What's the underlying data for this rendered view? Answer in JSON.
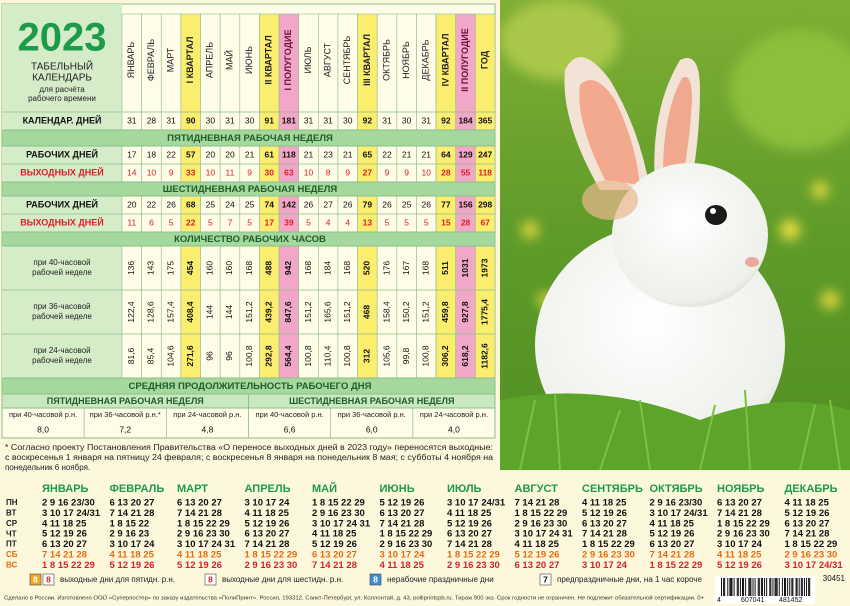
{
  "header": {
    "year": "2023",
    "title_lines": [
      "ТАБЕЛЬНЫЙ",
      "КАЛЕНДАРЬ"
    ],
    "subtitle_lines": [
      "для расчёта",
      "рабочего времени"
    ]
  },
  "table": {
    "columns": [
      "ЯНВАРЬ",
      "ФЕВРАЛЬ",
      "МАРТ",
      "I КВАРТАЛ",
      "АПРЕЛЬ",
      "МАЙ",
      "ИЮНЬ",
      "II КВАРТАЛ",
      "I ПОЛУГОДИЕ",
      "ИЮЛЬ",
      "АВГУСТ",
      "СЕНТЯБРЬ",
      "III КВАРТАЛ",
      "ОКТЯБРЬ",
      "НОЯБРЬ",
      "ДЕКАБРЬ",
      "IV КВАРТАЛ",
      "II ПОЛУГОДИЕ",
      "ГОД"
    ],
    "calendar_days": {
      "label": "КАЛЕНДАР. ДНЕЙ",
      "values": [
        31,
        28,
        31,
        90,
        30,
        31,
        30,
        91,
        181,
        31,
        31,
        30,
        92,
        31,
        30,
        31,
        92,
        184,
        365
      ]
    },
    "five_day": {
      "title": "ПЯТИДНЕВНАЯ РАБОЧАЯ НЕДЕЛЯ",
      "rows": [
        {
          "label": "РАБОЧИХ ДНЕЙ",
          "values": [
            17,
            18,
            22,
            57,
            20,
            20,
            21,
            61,
            118,
            21,
            23,
            21,
            65,
            22,
            21,
            21,
            64,
            129,
            247
          ]
        },
        {
          "label": "ВЫХОДНЫХ ДНЕЙ",
          "values": [
            14,
            10,
            9,
            33,
            10,
            11,
            9,
            30,
            63,
            10,
            8,
            9,
            27,
            9,
            9,
            10,
            28,
            55,
            118
          ]
        }
      ]
    },
    "six_day": {
      "title": "ШЕСТИДНЕВНАЯ РАБОЧАЯ НЕДЕЛЯ",
      "rows": [
        {
          "label": "РАБОЧИХ ДНЕЙ",
          "values": [
            20,
            22,
            26,
            68,
            25,
            24,
            25,
            74,
            142,
            26,
            27,
            26,
            79,
            26,
            25,
            26,
            77,
            156,
            298
          ]
        },
        {
          "label": "ВЫХОДНЫХ ДНЕЙ",
          "values": [
            11,
            6,
            5,
            22,
            5,
            7,
            5,
            17,
            39,
            5,
            4,
            4,
            13,
            5,
            5,
            5,
            15,
            28,
            67
          ]
        }
      ]
    },
    "hours": {
      "title": "КОЛИЧЕСТВО РАБОЧИХ ЧАСОВ",
      "rows": [
        {
          "label_lines": [
            "при 40-часовой",
            "рабочей неделе"
          ],
          "values": [
            "136",
            "143",
            "175",
            "454",
            "160",
            "160",
            "168",
            "488",
            "942",
            "168",
            "184",
            "168",
            "520",
            "176",
            "167",
            "168",
            "511",
            "1031",
            "1973"
          ]
        },
        {
          "label_lines": [
            "при 36-часовой",
            "рабочей неделе"
          ],
          "values": [
            "122,4",
            "128,6",
            "157,4",
            "408,4",
            "144",
            "144",
            "151,2",
            "439,2",
            "847,6",
            "151,2",
            "165,6",
            "151,2",
            "468",
            "158,4",
            "150,2",
            "151,2",
            "459,8",
            "927,8",
            "1775,4"
          ]
        },
        {
          "label_lines": [
            "при 24-часовой",
            "рабочей неделе"
          ],
          "values": [
            "81,6",
            "85,4",
            "104,6",
            "271,6",
            "96",
            "96",
            "100,8",
            "292,8",
            "564,4",
            "100,8",
            "110,4",
            "100,8",
            "312",
            "105,6",
            "99,8",
            "100,8",
            "306,2",
            "618,2",
            "1182,6"
          ]
        }
      ]
    },
    "average": {
      "title": "СРЕДНЯЯ ПРОДОЛЖИТЕЛЬНОСТЬ РАБОЧЕГО ДНЯ",
      "groups": [
        {
          "title": "ПЯТИДНЕВНАЯ РАБОЧАЯ НЕДЕЛЯ",
          "items": [
            {
              "label": "при 40-часовой р.н.",
              "value": "8,0"
            },
            {
              "label": "при 36-часовой р.н.*",
              "value": "7,2"
            },
            {
              "label": "при 24-часовой р.н.",
              "value": "4,8"
            }
          ]
        },
        {
          "title": "ШЕСТИДНЕВНАЯ РАБОЧАЯ НЕДЕЛЯ",
          "items": [
            {
              "label": "при 40-часовой р.н.",
              "value": "6,6"
            },
            {
              "label": "при 36-часовой р.н.",
              "value": "6,0"
            },
            {
              "label": "при 24-часовой р.н.",
              "value": "4,0"
            }
          ]
        }
      ]
    }
  },
  "footnote_lines": [
    "* Согласно проекту Постановления Правительства «О переносе выходных дней в 2023 году» переносятся выходные:",
    "с воскресенья 1 января на пятницу 24 февраля; с воскресенья 8 января на понедельник 8 мая; с субботы 4 ноября на",
    "понедельник 6 ноября."
  ],
  "calendar": {
    "weekdays": [
      "ПН",
      "ВТ",
      "СР",
      "ЧТ",
      "ПТ",
      "СБ",
      "ВС"
    ],
    "months": [
      {
        "name": "ЯНВАРЬ",
        "rows": [
          "2 9 16 23/30",
          "3 10 17 24/31",
          "4 11 18 25",
          "5 12 19 26",
          "6 13 20 27",
          "7 14 21 28",
          "1 8 15 22 29"
        ]
      },
      {
        "name": "ФЕВРАЛЬ",
        "rows": [
          "6 13 20 27",
          "7 14 21 28",
          "1 8 15 22",
          "2 9 16 23",
          "3 10 17 24",
          "4 11 18 25",
          "5 12 19 26"
        ]
      },
      {
        "name": "МАРТ",
        "rows": [
          "6 13 20 27",
          "7 14 21 28",
          "1 8 15 22 29",
          "2 9 16 23 30",
          "3 10 17 24 31",
          "4 11 18 25",
          "5 12 19 26"
        ]
      },
      {
        "name": "АПРЕЛЬ",
        "rows": [
          "3 10 17 24",
          "4 11 18 25",
          "5 12 19 26",
          "6 13 20 27",
          "7 14 21 28",
          "1 8 15 22 29",
          "2 9 16 23 30"
        ]
      },
      {
        "name": "МАЙ",
        "rows": [
          "1 8 15 22 29",
          "2 9 16 23 30",
          "3 10 17 24 31",
          "4 11 18 25",
          "5 12 19 26",
          "6 13 20 27",
          "7 14 21 28"
        ]
      },
      {
        "name": "ИЮНЬ",
        "rows": [
          "5 12 19 26",
          "6 13 20 27",
          "7 14 21 28",
          "1 8 15 22 29",
          "2 9 16 23 30",
          "3 10 17 24",
          "4 11 18 25"
        ]
      },
      {
        "name": "ИЮЛЬ",
        "rows": [
          "3 10 17 24/31",
          "4 11 18 25",
          "5 12 19 26",
          "6 13 20 27",
          "7 14 21 28",
          "1 8 15 22 29",
          "2 9 16 23 30"
        ]
      },
      {
        "name": "АВГУСТ",
        "rows": [
          "7 14 21 28",
          "1 8 15 22 29",
          "2 9 16 23 30",
          "3 10 17 24 31",
          "4 11 18 25",
          "5 12 19 26",
          "6 13 20 27"
        ]
      },
      {
        "name": "СЕНТЯБРЬ",
        "rows": [
          "4 11 18 25",
          "5 12 19 26",
          "6 13 20 27",
          "7 14 21 28",
          "1 8 15 22 29",
          "2 9 16 23 30",
          "3 10 17 24"
        ]
      },
      {
        "name": "ОКТЯБРЬ",
        "rows": [
          "2 9 16 23/30",
          "3 10 17 24/31",
          "4 11 18 25",
          "5 12 19 26",
          "6 13 20 27",
          "7 14 21 28",
          "1 8 15 22 29"
        ]
      },
      {
        "name": "НОЯБРЬ",
        "rows": [
          "6 13 20 27",
          "7 14 21 28",
          "1 8 15 22 29",
          "2 9 16 23 30",
          "3 10 17 24",
          "4 11 18 25",
          "5 12 19 26"
        ]
      },
      {
        "name": "ДЕКАБРЬ",
        "rows": [
          "4 11 18 25",
          "5 12 19 26",
          "6 13 20 27",
          "7 14 21 28",
          "1 8 15 22 29",
          "2 9 16 23 30",
          "3 10 17 24/31"
        ]
      }
    ]
  },
  "legend": [
    {
      "samples": [
        "8",
        "8"
      ],
      "text": "выходные дни для пятидн. р.н."
    },
    {
      "samples": [
        "8"
      ],
      "text": "выходные дни для шестидн. р.н."
    },
    {
      "samples": [
        "8"
      ],
      "text": "нерабочие праздничные дни"
    },
    {
      "samples": [
        "7"
      ],
      "text": "предпраздничные дни, на 1 час короче"
    }
  ],
  "barcode": {
    "digits": [
      "4",
      "607041",
      "481452"
    ],
    "code": "30451"
  },
  "imprint": "Сделано в России. Изготовлено ООО «Суперпостер» по заказу издательства «ПолиПринт». Россия, 193312, Санкт-Петербург, ул. Коллонтай, д. 43, polliprintspb.ru. Тираж 900 экз. Срок годности не ограничен. Не подлежит обязательной сертификации. 0+"
}
